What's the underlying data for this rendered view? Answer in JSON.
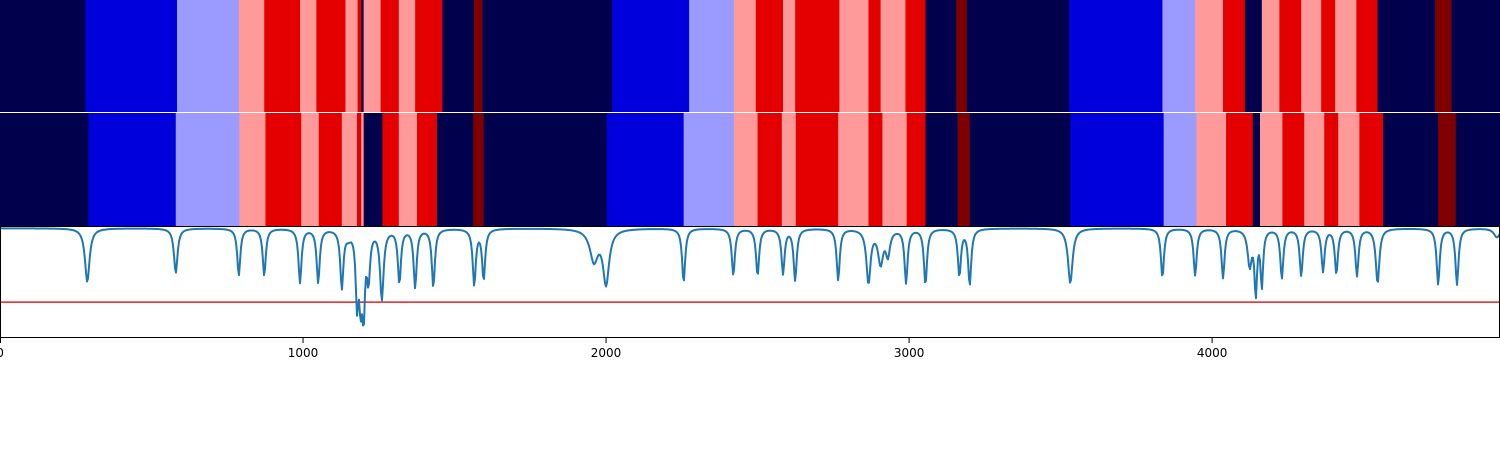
{
  "chart_data": [
    {
      "type": "heatmap",
      "description": "segment band (top row)",
      "palette": [
        "#00004c",
        "#0000dd",
        "#9a9aff",
        "#ff9a9a",
        "#e50000",
        "#800000"
      ],
      "segments": [
        [
          0,
          282,
          0
        ],
        [
          282,
          584,
          1
        ],
        [
          584,
          788,
          2
        ],
        [
          788,
          872,
          3
        ],
        [
          872,
          990,
          4
        ],
        [
          990,
          1044,
          3
        ],
        [
          1044,
          1140,
          4
        ],
        [
          1140,
          1180,
          3
        ],
        [
          1180,
          1192,
          4
        ],
        [
          1192,
          1200,
          0
        ],
        [
          1200,
          1256,
          3
        ],
        [
          1256,
          1316,
          4
        ],
        [
          1316,
          1370,
          3
        ],
        [
          1370,
          1460,
          4
        ],
        [
          1460,
          1564,
          0
        ],
        [
          1564,
          1592,
          5
        ],
        [
          1592,
          2020,
          0
        ],
        [
          2020,
          2274,
          1
        ],
        [
          2274,
          2422,
          2
        ],
        [
          2422,
          2494,
          3
        ],
        [
          2494,
          2584,
          4
        ],
        [
          2584,
          2624,
          3
        ],
        [
          2624,
          2770,
          4
        ],
        [
          2770,
          2866,
          3
        ],
        [
          2866,
          2906,
          4
        ],
        [
          2906,
          2988,
          3
        ],
        [
          2988,
          3054,
          4
        ],
        [
          3054,
          3156,
          0
        ],
        [
          3156,
          3190,
          5
        ],
        [
          3190,
          3528,
          0
        ],
        [
          3528,
          3836,
          1
        ],
        [
          3836,
          3944,
          2
        ],
        [
          3944,
          4036,
          3
        ],
        [
          4036,
          4108,
          4
        ],
        [
          4108,
          4164,
          0
        ],
        [
          4164,
          4222,
          3
        ],
        [
          4222,
          4294,
          4
        ],
        [
          4294,
          4360,
          3
        ],
        [
          4360,
          4406,
          4
        ],
        [
          4406,
          4476,
          3
        ],
        [
          4476,
          4546,
          4
        ],
        [
          4546,
          4736,
          0
        ],
        [
          4736,
          4790,
          5
        ],
        [
          4790,
          4950,
          0
        ]
      ]
    },
    {
      "type": "heatmap",
      "description": "segment band (middle row)",
      "palette": [
        "#00004c",
        "#0000dd",
        "#9a9aff",
        "#ff9a9a",
        "#e50000",
        "#800000"
      ],
      "segments": [
        [
          0,
          292,
          0
        ],
        [
          292,
          580,
          1
        ],
        [
          580,
          790,
          2
        ],
        [
          790,
          876,
          3
        ],
        [
          876,
          994,
          4
        ],
        [
          994,
          1052,
          3
        ],
        [
          1052,
          1128,
          4
        ],
        [
          1128,
          1178,
          3
        ],
        [
          1178,
          1192,
          4
        ],
        [
          1192,
          1200,
          3
        ],
        [
          1200,
          1262,
          0
        ],
        [
          1262,
          1316,
          4
        ],
        [
          1316,
          1376,
          3
        ],
        [
          1376,
          1442,
          4
        ],
        [
          1442,
          1562,
          0
        ],
        [
          1562,
          1596,
          5
        ],
        [
          1596,
          2002,
          0
        ],
        [
          2002,
          2256,
          1
        ],
        [
          2256,
          2422,
          2
        ],
        [
          2422,
          2500,
          3
        ],
        [
          2500,
          2580,
          4
        ],
        [
          2580,
          2626,
          3
        ],
        [
          2626,
          2766,
          4
        ],
        [
          2766,
          2866,
          3
        ],
        [
          2866,
          2912,
          4
        ],
        [
          2912,
          2992,
          3
        ],
        [
          2992,
          3054,
          4
        ],
        [
          3054,
          3160,
          0
        ],
        [
          3160,
          3200,
          5
        ],
        [
          3200,
          3532,
          0
        ],
        [
          3532,
          3840,
          1
        ],
        [
          3840,
          3948,
          2
        ],
        [
          3948,
          4046,
          3
        ],
        [
          4046,
          4134,
          4
        ],
        [
          4134,
          4158,
          0
        ],
        [
          4158,
          4232,
          3
        ],
        [
          4232,
          4304,
          4
        ],
        [
          4304,
          4370,
          3
        ],
        [
          4370,
          4416,
          4
        ],
        [
          4416,
          4486,
          3
        ],
        [
          4486,
          4564,
          4
        ],
        [
          4564,
          4746,
          0
        ],
        [
          4746,
          4804,
          5
        ],
        [
          4804,
          4950,
          0
        ]
      ]
    },
    {
      "type": "line",
      "description": "signal with threshold",
      "xlim": [
        0,
        4950
      ],
      "ylim": [
        -1,
        0
      ],
      "series_color": "#1f77b4",
      "threshold": {
        "value": -0.68,
        "color": "#e02020"
      },
      "baseline": -0.02,
      "dips": [
        [
          288,
          0.48,
          9
        ],
        [
          580,
          0.4,
          7
        ],
        [
          788,
          0.42,
          6
        ],
        [
          872,
          0.42,
          6
        ],
        [
          990,
          0.48,
          6
        ],
        [
          1050,
          0.48,
          6
        ],
        [
          1128,
          0.52,
          6
        ],
        [
          1150,
          0.05,
          10
        ],
        [
          1178,
          0.6,
          5
        ],
        [
          1190,
          0.58,
          6
        ],
        [
          1200,
          0.66,
          5
        ],
        [
          1216,
          0.42,
          6
        ],
        [
          1260,
          0.62,
          7
        ],
        [
          1318,
          0.48,
          6
        ],
        [
          1370,
          0.52,
          6
        ],
        [
          1430,
          0.52,
          6
        ],
        [
          1565,
          0.5,
          6
        ],
        [
          1596,
          0.45,
          6
        ],
        [
          1960,
          0.28,
          16
        ],
        [
          2000,
          0.48,
          12
        ],
        [
          2256,
          0.48,
          6
        ],
        [
          2420,
          0.42,
          6
        ],
        [
          2500,
          0.42,
          6
        ],
        [
          2584,
          0.4,
          6
        ],
        [
          2624,
          0.46,
          6
        ],
        [
          2766,
          0.46,
          6
        ],
        [
          2866,
          0.48,
          8
        ],
        [
          2906,
          0.3,
          10
        ],
        [
          2930,
          0.22,
          8
        ],
        [
          2990,
          0.48,
          6
        ],
        [
          3054,
          0.5,
          6
        ],
        [
          3166,
          0.42,
          6
        ],
        [
          3200,
          0.5,
          6
        ],
        [
          3532,
          0.49,
          9
        ],
        [
          3836,
          0.44,
          6
        ],
        [
          3944,
          0.42,
          6
        ],
        [
          4036,
          0.44,
          6
        ],
        [
          4124,
          0.32,
          8
        ],
        [
          4144,
          0.56,
          5
        ],
        [
          4164,
          0.5,
          5
        ],
        [
          4230,
          0.44,
          6
        ],
        [
          4294,
          0.42,
          6
        ],
        [
          4366,
          0.38,
          6
        ],
        [
          4410,
          0.4,
          6
        ],
        [
          4478,
          0.42,
          6
        ],
        [
          4546,
          0.49,
          7
        ],
        [
          4746,
          0.5,
          6
        ],
        [
          4808,
          0.5,
          6
        ],
        [
          4940,
          0.08,
          12
        ]
      ]
    }
  ],
  "xaxis": {
    "ticks": [
      {
        "value": 0,
        "label": "0"
      },
      {
        "value": 1000,
        "label": "1000"
      },
      {
        "value": 2000,
        "label": "2000"
      },
      {
        "value": 3000,
        "label": "3000"
      },
      {
        "value": 4000,
        "label": "4000"
      }
    ]
  }
}
